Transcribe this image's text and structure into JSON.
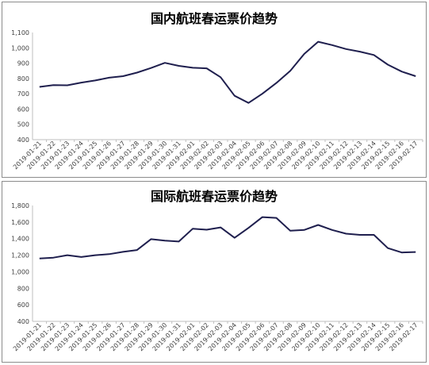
{
  "chart_data": [
    {
      "type": "line",
      "title": "国内航班春运票价趋势",
      "xlabel": "",
      "ylabel": "",
      "categories": [
        "2019-01-21",
        "2019-01-22",
        "2019-01-23",
        "2019-01-24",
        "2019-01-25",
        "2019-01-26",
        "2019-01-27",
        "2019-01-28",
        "2019-01-29",
        "2019-01-30",
        "2019-01-31",
        "2019-02-01",
        "2019-02-02",
        "2019-02-03",
        "2019-02-04",
        "2019-02-05",
        "2019-02-06",
        "2019-02-07",
        "2019-02-08",
        "2019-02-09",
        "2019-02-10",
        "2019-02-11",
        "2019-02-12",
        "2019-02-13",
        "2019-02-14",
        "2019-02-15",
        "2019-02-16",
        "2019-02-17"
      ],
      "values": [
        745,
        757,
        755,
        773,
        787,
        805,
        815,
        838,
        868,
        902,
        882,
        870,
        866,
        808,
        687,
        640,
        700,
        770,
        850,
        960,
        1040,
        1018,
        992,
        975,
        953,
        890,
        845,
        815
      ],
      "ylim": [
        400,
        1100
      ],
      "yticks": [
        400,
        500,
        600,
        700,
        800,
        900,
        1000,
        1100
      ],
      "ytick_labels": [
        "400",
        "500",
        "600",
        "700",
        "800",
        "900",
        "1,000",
        "1,100"
      ],
      "grid": false,
      "legend": "none",
      "line_color": "#1f1f4e"
    },
    {
      "type": "line",
      "title": "国际航班春运票价趋势",
      "xlabel": "",
      "ylabel": "",
      "categories": [
        "2019-01-21",
        "2019-01-22",
        "2019-01-23",
        "2019-01-24",
        "2019-01-25",
        "2019-01-26",
        "2019-01-27",
        "2019-01-28",
        "2019-01-29",
        "2019-01-30",
        "2019-01-31",
        "2019-02-01",
        "2019-02-02",
        "2019-02-03",
        "2019-02-04",
        "2019-02-05",
        "2019-02-06",
        "2019-02-07",
        "2019-02-08",
        "2019-02-09",
        "2019-02-10",
        "2019-02-11",
        "2019-02-12",
        "2019-02-13",
        "2019-02-14",
        "2019-02-15",
        "2019-02-16",
        "2019-02-17"
      ],
      "values": [
        1160,
        1170,
        1200,
        1178,
        1200,
        1212,
        1240,
        1262,
        1393,
        1375,
        1365,
        1520,
        1508,
        1535,
        1410,
        1530,
        1660,
        1650,
        1495,
        1505,
        1565,
        1505,
        1460,
        1445,
        1445,
        1285,
        1232,
        1238
      ],
      "ylim": [
        400,
        1800
      ],
      "yticks": [
        400,
        600,
        800,
        1000,
        1200,
        1400,
        1600,
        1800
      ],
      "ytick_labels": [
        "400",
        "600",
        "800",
        "1,000",
        "1,200",
        "1,400",
        "1,600",
        "1,800"
      ],
      "grid": false,
      "legend": "none",
      "line_color": "#1f1f4e"
    }
  ]
}
